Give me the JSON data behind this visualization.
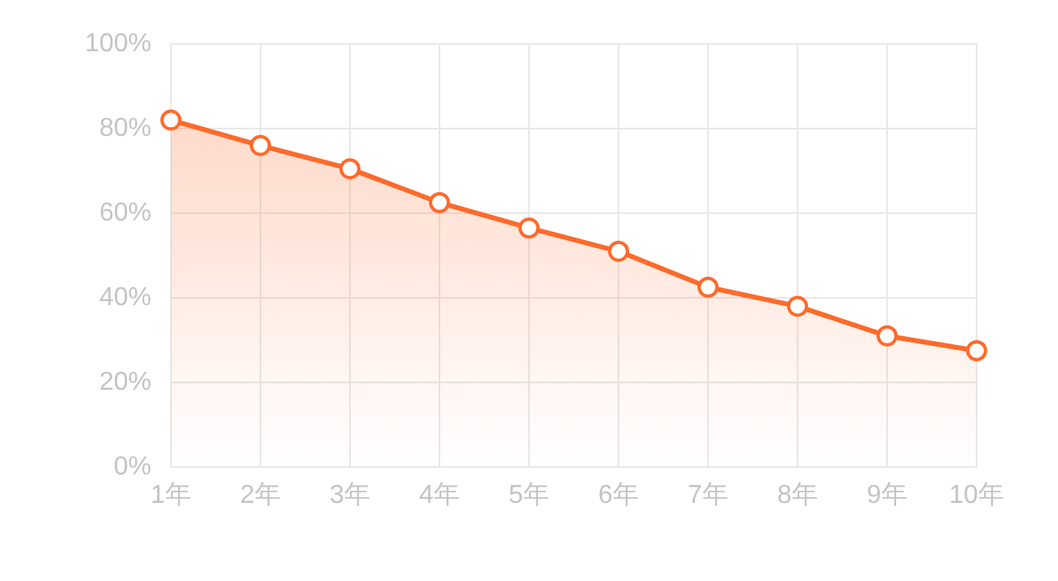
{
  "chart_data": {
    "type": "area",
    "categories": [
      "1年",
      "2年",
      "3年",
      "4年",
      "5年",
      "6年",
      "7年",
      "8年",
      "9年",
      "10年"
    ],
    "series": [
      {
        "color": "#ff6a2b",
        "values": [
          82,
          76,
          70.5,
          62.5,
          56.5,
          51,
          42.5,
          38,
          31,
          27.5
        ]
      }
    ],
    "ylim": [
      0,
      100
    ],
    "yticks": [
      {
        "value": 0,
        "label": "0%"
      },
      {
        "value": 20,
        "label": "20%"
      },
      {
        "value": 40,
        "label": "40%"
      },
      {
        "value": 60,
        "label": "60%"
      },
      {
        "value": 80,
        "label": "80%"
      },
      {
        "value": 100,
        "label": "100%"
      }
    ],
    "grid": true,
    "marker": "circle",
    "line_style": "solid"
  }
}
